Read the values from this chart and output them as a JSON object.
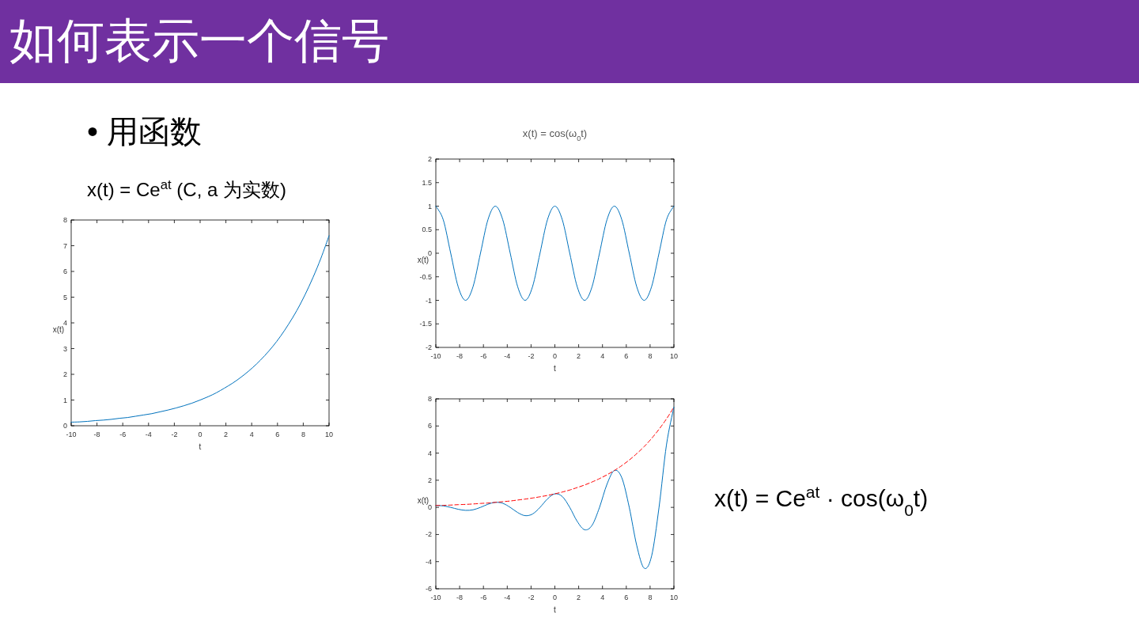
{
  "chart_data": [
    {
      "type": "line",
      "title": "如何表示一个信号",
      "subtitle": "• 用函数",
      "annotations": [
        "x(t) = Ce$^{at}$ (C, a 为实数)"
      ],
      "xlabel": "t",
      "ylabel": "x(t)",
      "xlim": [
        -10,
        10
      ],
      "ylim": [
        0,
        8
      ],
      "xticks": [
        -10,
        -8,
        -6,
        -4,
        -2,
        0,
        2,
        4,
        6,
        8,
        10
      ],
      "yticks": [
        0,
        1,
        2,
        3,
        4,
        5,
        6,
        7,
        8
      ],
      "x": [
        -10,
        -9.375,
        -8.75,
        -8.125,
        -7.5,
        -6.875,
        -6.25,
        -5.625,
        -5,
        -4.375,
        -3.75,
        -3.125,
        -2.5,
        -1.875,
        -1.25,
        -0.625,
        0,
        0.625,
        1.25,
        1.875,
        2.5,
        3.125,
        3.75,
        4.375,
        5,
        5.625,
        6.25,
        6.875,
        7.5,
        8.125,
        8.75,
        9.375,
        10
      ],
      "series": [
        {
          "color": "#0072bd",
          "values": [
            0.14,
            0.15,
            0.17,
            0.2,
            0.22,
            0.25,
            0.29,
            0.32,
            0.37,
            0.42,
            0.47,
            0.54,
            0.61,
            0.69,
            0.78,
            0.88,
            1,
            1.13,
            1.28,
            1.46,
            1.65,
            1.87,
            2.12,
            2.4,
            2.72,
            3.08,
            3.49,
            3.96,
            4.48,
            5.08,
            5.76,
            6.52,
            7.39
          ]
        }
      ]
    },
    {
      "type": "line",
      "title": "x(t) = cos(ω$_{0}$t)",
      "xlabel": "t",
      "ylabel": "x(t)",
      "xlim": [
        -10,
        10
      ],
      "ylim": [
        -2,
        2
      ],
      "xticks": [
        -10,
        -8,
        -6,
        -4,
        -2,
        0,
        2,
        4,
        6,
        8,
        10
      ],
      "yticks": [
        -2,
        -1.5,
        -1,
        -0.5,
        0,
        0.5,
        1,
        1.5,
        2
      ],
      "x": [
        -10,
        -9.375,
        -8.75,
        -8.125,
        -7.5,
        -6.875,
        -6.25,
        -5.625,
        -5,
        -4.375,
        -3.75,
        -3.125,
        -2.5,
        -1.875,
        -1.25,
        -0.625,
        0,
        0.625,
        1.25,
        1.875,
        2.5,
        3.125,
        3.75,
        4.375,
        5,
        5.625,
        6.25,
        6.875,
        7.5,
        8.125,
        8.75,
        9.375,
        10
      ],
      "series": [
        {
          "color": "#0072bd",
          "values": [
            1,
            0.71,
            0,
            -0.71,
            -1,
            -0.71,
            0,
            0.71,
            1,
            0.71,
            0,
            -0.71,
            -1,
            -0.71,
            0,
            0.71,
            1,
            0.71,
            0,
            -0.71,
            -1,
            -0.71,
            0,
            0.71,
            1,
            0.71,
            0,
            -0.71,
            -1,
            -0.71,
            0,
            0.71,
            1
          ]
        }
      ]
    },
    {
      "type": "line",
      "annotations": [
        "x(t) = Ce$^{at}$ · cos(ω$_{0}$t)"
      ],
      "xlabel": "t",
      "ylabel": "x(t)",
      "xlim": [
        -10,
        10
      ],
      "ylim": [
        -6,
        8
      ],
      "xticks": [
        -10,
        -8,
        -6,
        -4,
        -2,
        0,
        2,
        4,
        6,
        8,
        10
      ],
      "yticks": [
        -6,
        -4,
        -2,
        0,
        2,
        4,
        6,
        8
      ],
      "x": [
        -10,
        -9.375,
        -8.75,
        -8.125,
        -7.5,
        -6.875,
        -6.25,
        -5.625,
        -5,
        -4.375,
        -3.75,
        -3.125,
        -2.5,
        -1.875,
        -1.25,
        -0.625,
        0,
        0.625,
        1.25,
        1.875,
        2.5,
        3.125,
        3.75,
        4.375,
        5,
        5.625,
        6.25,
        6.875,
        7.5,
        8.125,
        8.75,
        9.375,
        10
      ],
      "series": [
        {
          "color": "#0072bd",
          "values": [
            0.14,
            0.11,
            0,
            -0.14,
            -0.22,
            -0.18,
            0,
            0.23,
            0.37,
            0.3,
            0,
            -0.38,
            -0.61,
            -0.49,
            0,
            0.62,
            1,
            0.8,
            0,
            -1.03,
            -1.65,
            -1.32,
            0,
            1.7,
            2.72,
            2.18,
            0,
            -2.8,
            -4.48,
            -3.59,
            0,
            4.61,
            7.39
          ]
        },
        {
          "color": "#ff0000",
          "line_style": "dashed",
          "values": [
            0.14,
            0.15,
            0.17,
            0.2,
            0.22,
            0.25,
            0.29,
            0.32,
            0.37,
            0.42,
            0.47,
            0.54,
            0.61,
            0.69,
            0.78,
            0.88,
            1,
            1.13,
            1.28,
            1.46,
            1.65,
            1.87,
            2.12,
            2.4,
            2.72,
            3.08,
            3.49,
            3.96,
            4.48,
            5.08,
            5.76,
            6.52,
            7.39
          ]
        }
      ]
    }
  ]
}
